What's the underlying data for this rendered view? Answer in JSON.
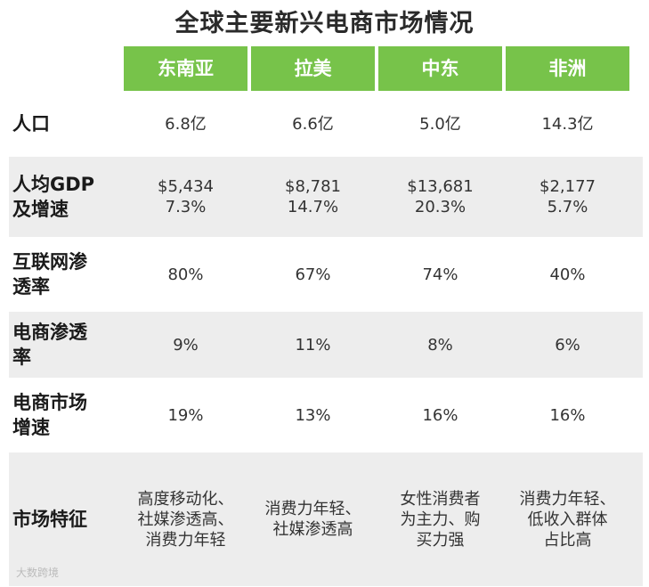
{
  "title": "全球主要新兴电商市场情况",
  "columns": [
    "东南亚",
    "拉美",
    "中东",
    "非洲"
  ],
  "rows": [
    {
      "label": "人口",
      "values": [
        "6.8亿",
        "6.6亿",
        "5.0亿",
        "14.3亿"
      ]
    },
    {
      "label": "人均GDP\n及增速",
      "values": [
        "$5,434\n7.3%",
        "$8,781\n14.7%",
        "$13,681\n20.3%",
        "$2,177\n5.7%"
      ]
    },
    {
      "label": "互联网渗\n透率",
      "values": [
        "80%",
        "67%",
        "74%",
        "40%"
      ]
    },
    {
      "label": "电商渗透\n率",
      "values": [
        "9%",
        "11%",
        "8%",
        "6%"
      ]
    },
    {
      "label": "电商市场\n增速",
      "values": [
        "19%",
        "13%",
        "16%",
        "16%"
      ]
    },
    {
      "label": "市场特征",
      "values": [
        "高度移动化、\n社媒渗透高、\n消费力年轻",
        "消费力年轻、\n社媒渗透高",
        "女性消费者\n为主力、购\n买力强",
        "消费力年轻、\n低收入群体\n占比高"
      ]
    }
  ],
  "watermark": "大数跨境"
}
